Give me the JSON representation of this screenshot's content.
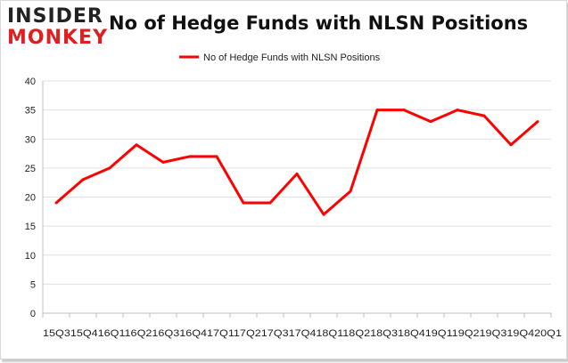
{
  "logo": {
    "line1": "INSIDER",
    "line2": "MONKEY"
  },
  "chart_data": {
    "type": "line",
    "title": "No of Hedge Funds with NLSN Positions",
    "categories": [
      "15Q3",
      "15Q4",
      "16Q1",
      "16Q2",
      "16Q3",
      "16Q4",
      "17Q1",
      "17Q2",
      "17Q3",
      "17Q4",
      "18Q1",
      "18Q2",
      "18Q3",
      "18Q4",
      "19Q1",
      "19Q2",
      "19Q3",
      "19Q4",
      "20Q1"
    ],
    "x_tick_text": "15Q315Q416Q116Q216Q316Q417Q117Q217Q317Q418Q118Q218Q318Q419Q119Q219Q319Q420Q1",
    "series": [
      {
        "name": "No of Hedge Funds with NLSN Positions",
        "values": [
          19,
          23,
          25,
          29,
          26,
          27,
          27,
          19,
          19,
          24,
          17,
          21,
          35,
          35,
          33,
          35,
          34,
          29,
          33
        ]
      }
    ],
    "ylim": [
      0,
      40
    ],
    "yticks": [
      0,
      5,
      10,
      15,
      20,
      25,
      30,
      35,
      40
    ],
    "grid": true,
    "legend_position": "top-center",
    "colors": {
      "series": "#ff0000",
      "grid": "#e0e0e0",
      "axis": "#bfbfbf"
    }
  }
}
